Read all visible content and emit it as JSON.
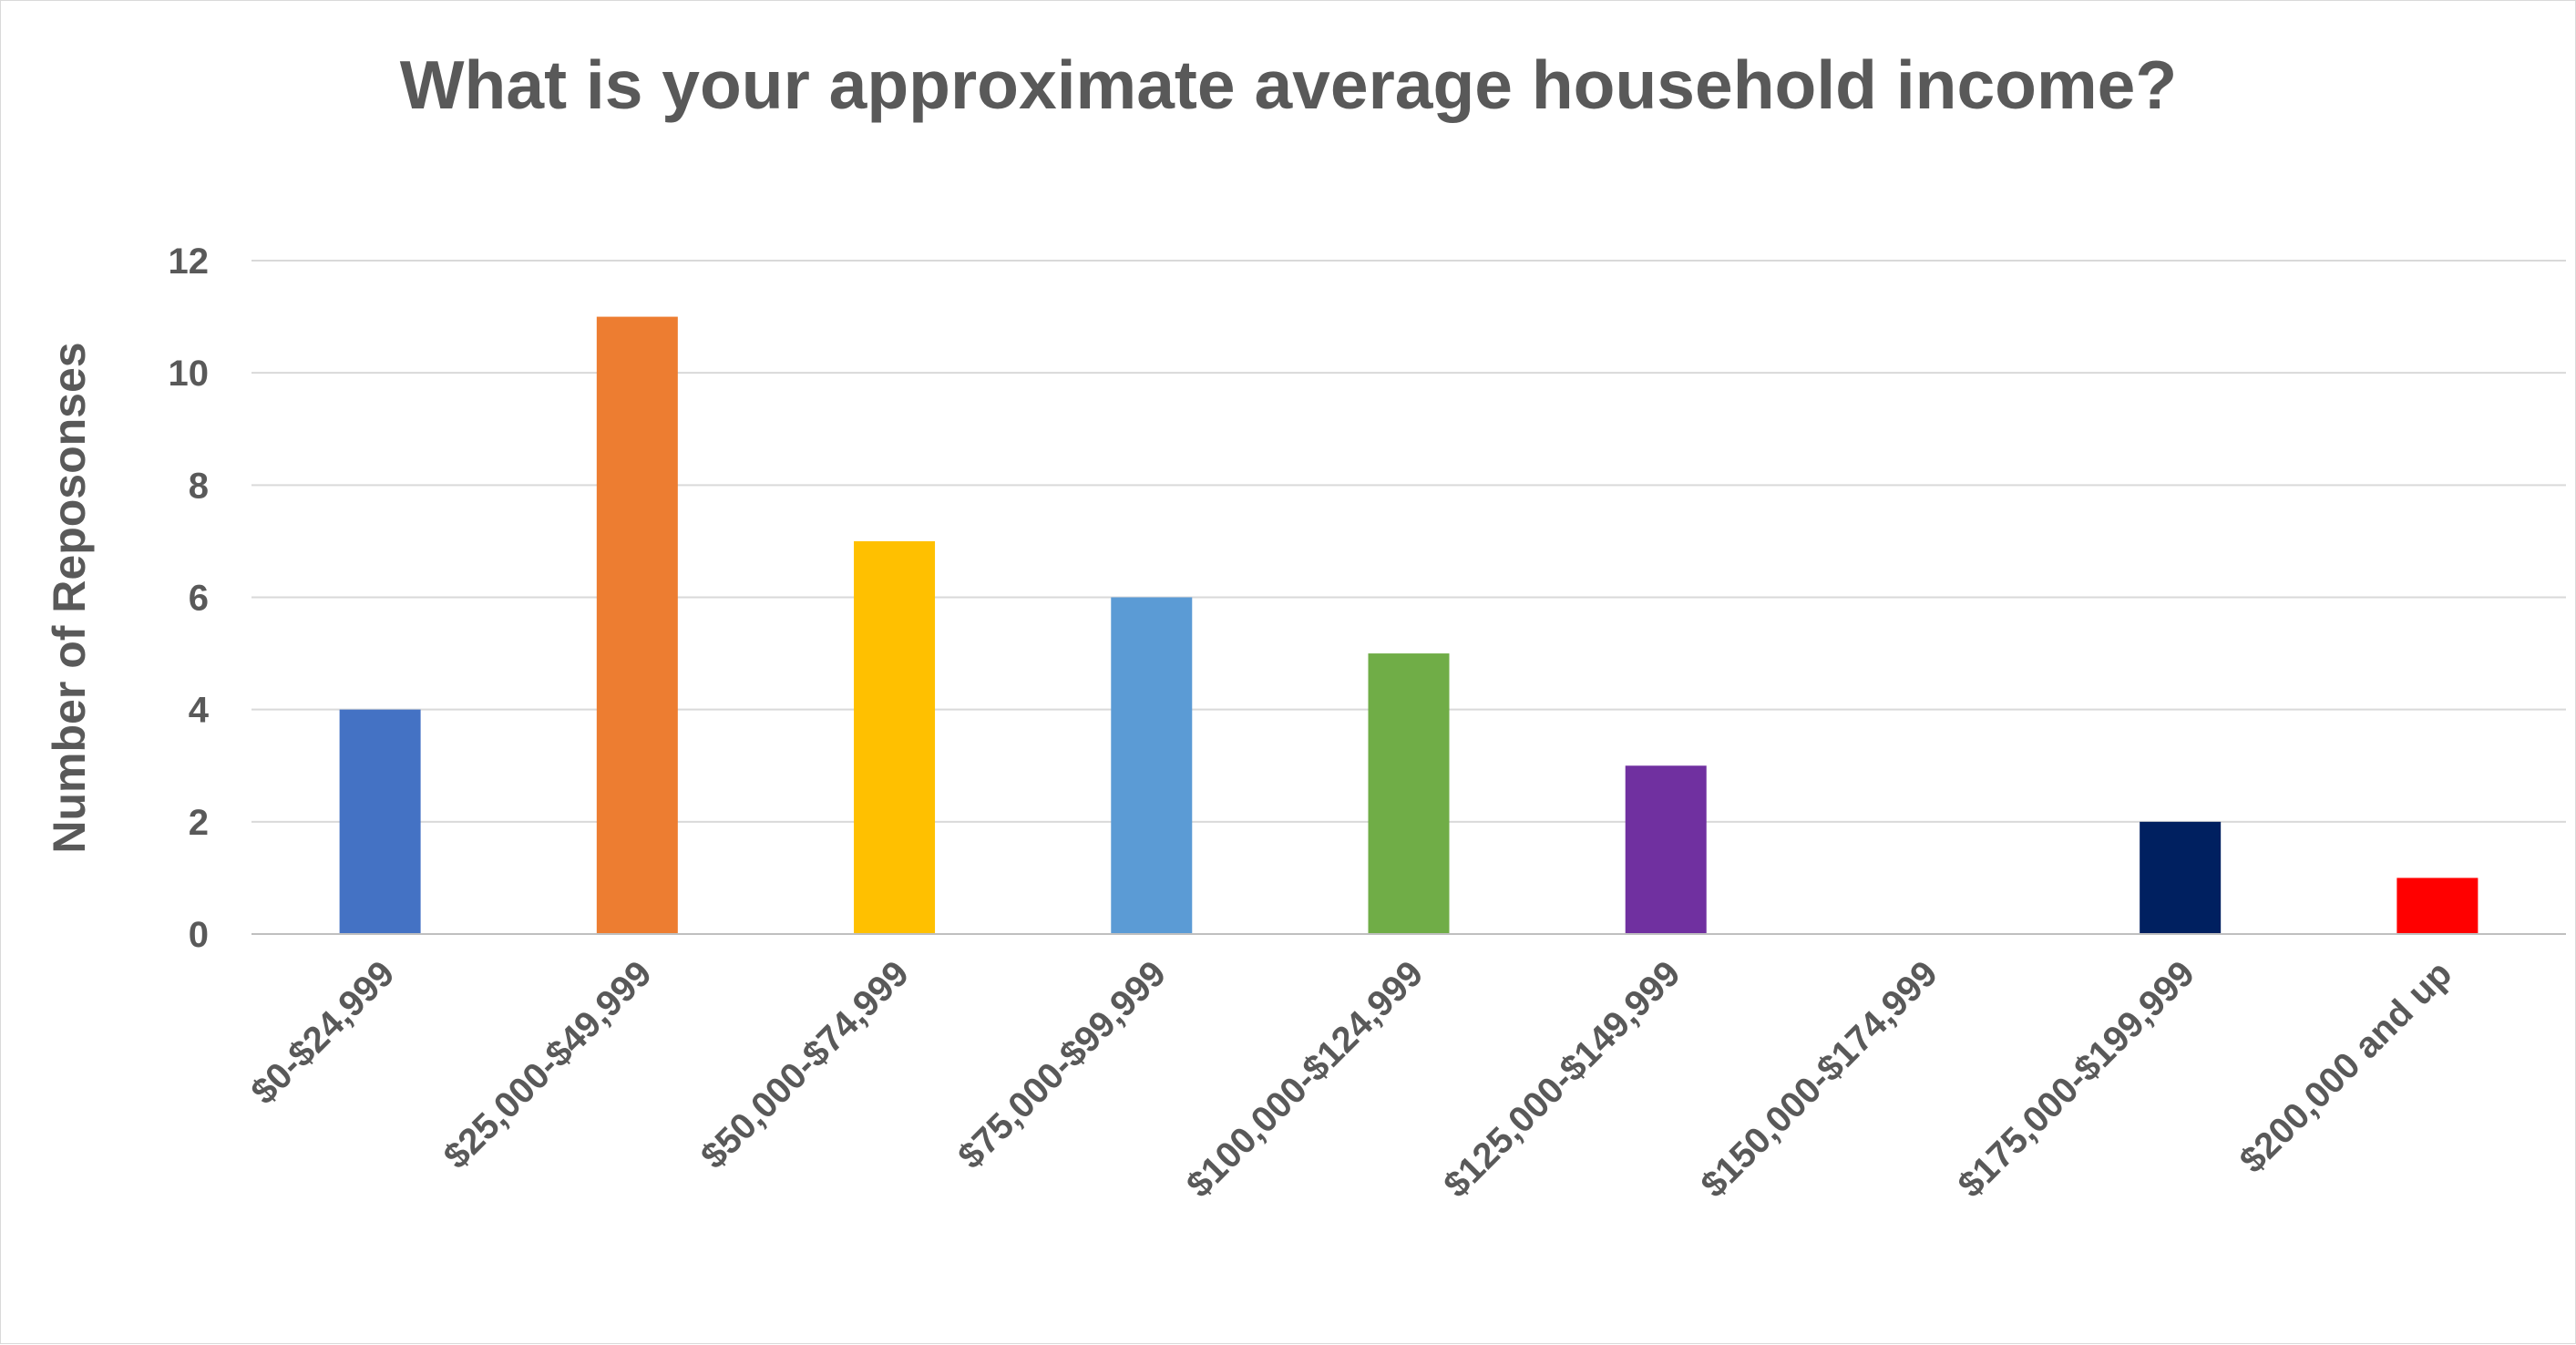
{
  "chart_data": {
    "type": "bar",
    "title": "What is your approximate average household income?",
    "xlabel": "",
    "ylabel": "Number of Reposonses",
    "categories": [
      "$0-$24,999",
      "$25,000-$49,999",
      "$50,000-$74,999",
      "$75,000-$99,999",
      "$100,000-$124,999",
      "$125,000-$149,999",
      "$150,000-$174,999",
      "$175,000-$199,999",
      "$200,000 and up"
    ],
    "values": [
      4,
      11,
      7,
      6,
      5,
      3,
      0,
      2,
      1
    ],
    "colors": [
      "#4472c4",
      "#ed7d31",
      "#ffc000",
      "#5b9bd5",
      "#70ad47",
      "#7030a0",
      "#264478",
      "#002060",
      "#ff0000"
    ],
    "ylim": [
      0,
      12
    ],
    "yticks": [
      0,
      2,
      4,
      6,
      8,
      10,
      12
    ],
    "grid": true,
    "legend": "none"
  }
}
